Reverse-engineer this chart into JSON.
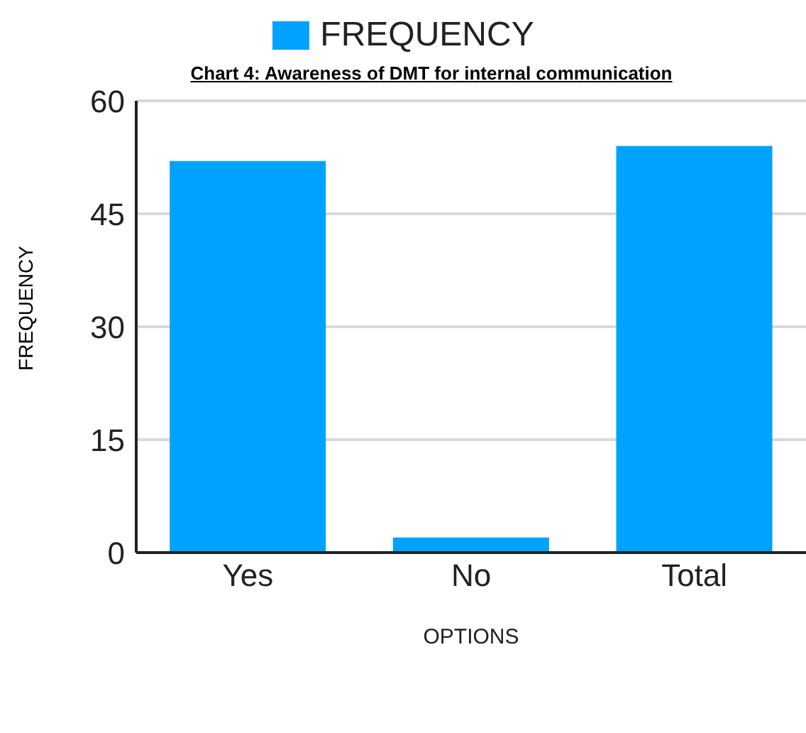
{
  "chart_data": {
    "type": "bar",
    "title": "Chart 4: Awareness of DMT for internal communication",
    "xlabel": "OPTIONS",
    "ylabel": "FREQUENCY",
    "categories": [
      "Yes",
      "No",
      "Total"
    ],
    "series": [
      {
        "name": "FREQUENCY",
        "color": "#00a2ff",
        "values": [
          52,
          2,
          54
        ]
      }
    ],
    "ylim": [
      0,
      60
    ],
    "yticks": [
      0,
      15,
      30,
      45,
      60
    ],
    "grid": "y",
    "legend": "top"
  }
}
